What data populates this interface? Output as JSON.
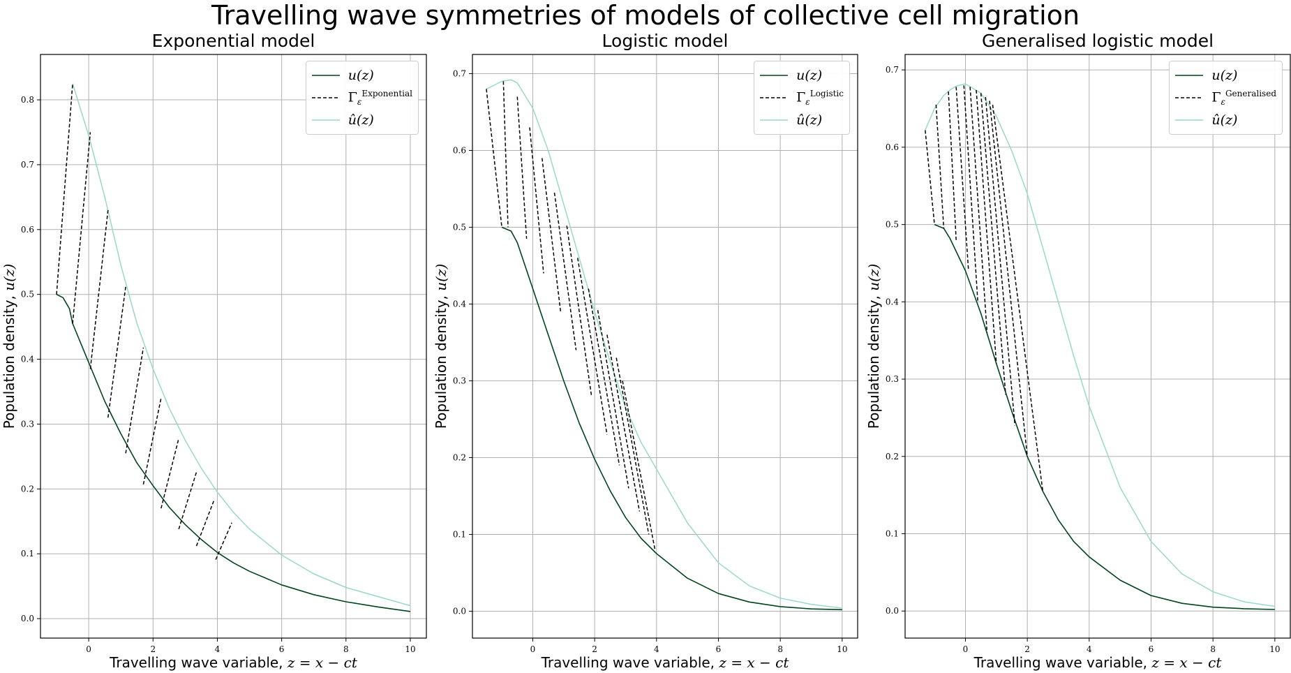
{
  "figure_title": "Travelling wave symmetries of models of collective cell migration",
  "chart_data": [
    {
      "type": "line",
      "title": "Exponential model",
      "xlabel_text": "Travelling wave variable, ",
      "xlabel_math": "z = x − ct",
      "ylabel_text": "Population density, ",
      "ylabel_math": "u(z)",
      "xlim": [
        -1.5,
        10.5
      ],
      "ylim": [
        -0.03,
        0.87
      ],
      "xticks": [
        0,
        2,
        4,
        6,
        8,
        10
      ],
      "yticks": [
        0.0,
        0.1,
        0.2,
        0.3,
        0.4,
        0.5,
        0.6,
        0.7,
        0.8
      ],
      "ytick_labels": [
        "0.0",
        "0.1",
        "0.2",
        "0.3",
        "0.4",
        "0.5",
        "0.6",
        "0.7",
        "0.8"
      ],
      "grid": true,
      "legend_position": "top-right",
      "legend": [
        {
          "label_main": "u(z)",
          "sup": "",
          "sub": "",
          "style": "solid",
          "color": "#00441b"
        },
        {
          "label_main": "Γ",
          "sup": "Exponential",
          "sub": "ε",
          "style": "dashed",
          "color": "#000000"
        },
        {
          "label_main": "û(z)",
          "sup": "",
          "sub": "",
          "style": "solid",
          "color": "#99d8c9"
        }
      ],
      "series": [
        {
          "name": "u(z)",
          "color": "#00441b",
          "x": [
            -1.0,
            -0.8,
            -0.6,
            -0.5,
            0.0,
            0.5,
            1.0,
            1.5,
            2.0,
            2.5,
            3.0,
            3.5,
            4.0,
            4.5,
            5.0,
            6.0,
            7.0,
            8.0,
            9.0,
            10.0
          ],
          "y": [
            0.5,
            0.495,
            0.478,
            0.455,
            0.395,
            0.335,
            0.285,
            0.24,
            0.205,
            0.172,
            0.145,
            0.122,
            0.102,
            0.086,
            0.073,
            0.052,
            0.037,
            0.026,
            0.018,
            0.011
          ]
        },
        {
          "name": "û(z)",
          "color": "#99d8c9",
          "x": [
            -0.5,
            0.0,
            0.5,
            1.0,
            1.5,
            2.0,
            2.5,
            3.0,
            3.5,
            4.0,
            4.5,
            5.0,
            6.0,
            7.0,
            8.0,
            9.0,
            10.0
          ],
          "y": [
            0.825,
            0.745,
            0.65,
            0.545,
            0.455,
            0.385,
            0.325,
            0.275,
            0.232,
            0.195,
            0.164,
            0.138,
            0.098,
            0.069,
            0.048,
            0.034,
            0.02
          ]
        },
        {
          "name": "Γ",
          "color": "#000000",
          "dashed": true,
          "segments": [
            {
              "x0": -1.0,
              "y0": 0.5,
              "x1": -0.5,
              "y1": 0.825
            },
            {
              "x0": -0.5,
              "y0": 0.455,
              "x1": 0.05,
              "y1": 0.75
            },
            {
              "x0": 0.05,
              "y0": 0.385,
              "x1": 0.6,
              "y1": 0.63
            },
            {
              "x0": 0.6,
              "y0": 0.31,
              "x1": 1.15,
              "y1": 0.512
            },
            {
              "x0": 1.15,
              "y0": 0.255,
              "x1": 1.7,
              "y1": 0.418
            },
            {
              "x0": 1.7,
              "y0": 0.207,
              "x1": 2.25,
              "y1": 0.34
            },
            {
              "x0": 2.25,
              "y0": 0.17,
              "x1": 2.8,
              "y1": 0.278
            },
            {
              "x0": 2.8,
              "y0": 0.138,
              "x1": 3.35,
              "y1": 0.226
            },
            {
              "x0": 3.35,
              "y0": 0.112,
              "x1": 3.9,
              "y1": 0.183
            },
            {
              "x0": 3.95,
              "y0": 0.091,
              "x1": 4.45,
              "y1": 0.148
            }
          ]
        }
      ]
    },
    {
      "type": "line",
      "title": "Logistic model",
      "xlabel_text": "Travelling wave variable, ",
      "xlabel_math": "z = x − ct",
      "ylabel_text": "Population density, ",
      "ylabel_math": "u(z)",
      "xlim": [
        -1.95,
        10.5
      ],
      "ylim": [
        -0.035,
        0.725
      ],
      "xticks": [
        0,
        2,
        4,
        6,
        8,
        10
      ],
      "yticks": [
        0.0,
        0.1,
        0.2,
        0.3,
        0.4,
        0.5,
        0.6,
        0.7
      ],
      "ytick_labels": [
        "0.0",
        "0.1",
        "0.2",
        "0.3",
        "0.4",
        "0.5",
        "0.6",
        "0.7"
      ],
      "grid": true,
      "legend_position": "top-right",
      "legend": [
        {
          "label_main": "u(z)",
          "sup": "",
          "sub": "",
          "style": "solid",
          "color": "#00441b"
        },
        {
          "label_main": "Γ",
          "sup": "Logistic",
          "sub": "ε",
          "style": "dashed",
          "color": "#000000"
        },
        {
          "label_main": "û(z)",
          "sup": "",
          "sub": "",
          "style": "solid",
          "color": "#99d8c9"
        }
      ],
      "series": [
        {
          "name": "u(z)",
          "color": "#00441b",
          "x": [
            -1.0,
            -0.7,
            -0.5,
            0.0,
            0.5,
            1.0,
            1.5,
            2.0,
            2.5,
            3.0,
            3.5,
            4.0,
            5.0,
            6.0,
            7.0,
            8.0,
            9.0,
            10.0
          ],
          "y": [
            0.5,
            0.495,
            0.48,
            0.42,
            0.36,
            0.3,
            0.245,
            0.198,
            0.157,
            0.122,
            0.095,
            0.075,
            0.043,
            0.023,
            0.012,
            0.006,
            0.003,
            0.002
          ]
        },
        {
          "name": "û(z)",
          "color": "#99d8c9",
          "x": [
            -1.5,
            -1.0,
            -0.7,
            -0.5,
            0.0,
            0.5,
            1.0,
            1.5,
            2.0,
            2.5,
            3.0,
            3.5,
            4.0,
            5.0,
            6.0,
            7.0,
            8.0,
            9.0,
            10.0
          ],
          "y": [
            0.68,
            0.69,
            0.692,
            0.688,
            0.655,
            0.6,
            0.53,
            0.46,
            0.39,
            0.325,
            0.265,
            0.22,
            0.185,
            0.115,
            0.063,
            0.033,
            0.017,
            0.009,
            0.004
          ]
        },
        {
          "name": "Γ",
          "color": "#000000",
          "dashed": true,
          "segments": [
            {
              "x0": -1.5,
              "y0": 0.68,
              "x1": -1.0,
              "y1": 0.5
            },
            {
              "x0": -0.95,
              "y0": 0.69,
              "x1": -0.8,
              "y1": 0.5
            },
            {
              "x0": -0.5,
              "y0": 0.67,
              "x1": -0.2,
              "y1": 0.485
            },
            {
              "x0": -0.1,
              "y0": 0.63,
              "x1": 0.35,
              "y1": 0.44
            },
            {
              "x0": 0.3,
              "y0": 0.59,
              "x1": 0.9,
              "y1": 0.39
            },
            {
              "x0": 0.7,
              "y0": 0.545,
              "x1": 1.4,
              "y1": 0.34
            },
            {
              "x0": 1.1,
              "y0": 0.502,
              "x1": 1.9,
              "y1": 0.28
            },
            {
              "x0": 1.45,
              "y0": 0.46,
              "x1": 2.4,
              "y1": 0.23
            },
            {
              "x0": 1.8,
              "y0": 0.42,
              "x1": 2.8,
              "y1": 0.19
            },
            {
              "x0": 2.1,
              "y0": 0.392,
              "x1": 3.1,
              "y1": 0.16
            },
            {
              "x0": 2.4,
              "y0": 0.36,
              "x1": 3.45,
              "y1": 0.13
            },
            {
              "x0": 2.7,
              "y0": 0.33,
              "x1": 3.75,
              "y1": 0.1
            },
            {
              "x0": 2.9,
              "y0": 0.3,
              "x1": 3.95,
              "y1": 0.08
            }
          ]
        }
      ]
    },
    {
      "type": "line",
      "title": "Generalised logistic model",
      "xlabel_text": "Travelling wave variable, ",
      "xlabel_math": "z = x − ct",
      "ylabel_text": "Population density, ",
      "ylabel_math": "u(z)",
      "xlim": [
        -1.95,
        10.5
      ],
      "ylim": [
        -0.035,
        0.72
      ],
      "xticks": [
        0,
        2,
        4,
        6,
        8,
        10
      ],
      "yticks": [
        0.0,
        0.1,
        0.2,
        0.3,
        0.4,
        0.5,
        0.6,
        0.7
      ],
      "ytick_labels": [
        "0.0",
        "0.1",
        "0.2",
        "0.3",
        "0.4",
        "0.5",
        "0.6",
        "0.7"
      ],
      "grid": true,
      "legend_position": "top-right",
      "legend": [
        {
          "label_main": "u(z)",
          "sup": "",
          "sub": "",
          "style": "solid",
          "color": "#00441b"
        },
        {
          "label_main": "Γ",
          "sup": "Generalised",
          "sub": "ε",
          "style": "dashed",
          "color": "#000000"
        },
        {
          "label_main": "û(z)",
          "sup": "",
          "sub": "",
          "style": "solid",
          "color": "#99d8c9"
        }
      ],
      "series": [
        {
          "name": "u(z)",
          "color": "#00441b",
          "x": [
            -1.0,
            -0.7,
            -0.5,
            0.0,
            0.5,
            1.0,
            1.5,
            2.0,
            2.5,
            3.0,
            3.5,
            4.0,
            5.0,
            6.0,
            7.0,
            8.0,
            9.0,
            10.0
          ],
          "y": [
            0.5,
            0.495,
            0.482,
            0.44,
            0.385,
            0.32,
            0.258,
            0.2,
            0.155,
            0.118,
            0.09,
            0.07,
            0.04,
            0.02,
            0.01,
            0.005,
            0.003,
            0.002
          ]
        },
        {
          "name": "û(z)",
          "color": "#99d8c9",
          "x": [
            -1.3,
            -1.0,
            -0.7,
            -0.5,
            -0.3,
            0.0,
            0.5,
            1.0,
            1.5,
            2.0,
            2.5,
            3.0,
            3.5,
            4.0,
            5.0,
            6.0,
            7.0,
            8.0,
            9.0,
            10.0
          ],
          "y": [
            0.622,
            0.65,
            0.667,
            0.674,
            0.679,
            0.682,
            0.67,
            0.64,
            0.595,
            0.54,
            0.47,
            0.4,
            0.33,
            0.265,
            0.16,
            0.09,
            0.048,
            0.025,
            0.012,
            0.006
          ]
        },
        {
          "name": "Γ",
          "color": "#000000",
          "dashed": true,
          "segments": [
            {
              "x0": -1.3,
              "y0": 0.622,
              "x1": -1.0,
              "y1": 0.5
            },
            {
              "x0": -0.95,
              "y0": 0.655,
              "x1": -0.7,
              "y1": 0.495
            },
            {
              "x0": -0.55,
              "y0": 0.672,
              "x1": -0.3,
              "y1": 0.48
            },
            {
              "x0": -0.3,
              "y0": 0.678,
              "x1": 0.1,
              "y1": 0.44
            },
            {
              "x0": -0.05,
              "y0": 0.68,
              "x1": 0.4,
              "y1": 0.4
            },
            {
              "x0": 0.15,
              "y0": 0.678,
              "x1": 0.7,
              "y1": 0.36
            },
            {
              "x0": 0.35,
              "y0": 0.674,
              "x1": 1.0,
              "y1": 0.32
            },
            {
              "x0": 0.5,
              "y0": 0.67,
              "x1": 1.3,
              "y1": 0.28
            },
            {
              "x0": 0.65,
              "y0": 0.665,
              "x1": 1.6,
              "y1": 0.24
            },
            {
              "x0": 0.78,
              "y0": 0.66,
              "x1": 2.0,
              "y1": 0.2
            },
            {
              "x0": 0.88,
              "y0": 0.655,
              "x1": 2.5,
              "y1": 0.155
            }
          ]
        }
      ]
    }
  ]
}
